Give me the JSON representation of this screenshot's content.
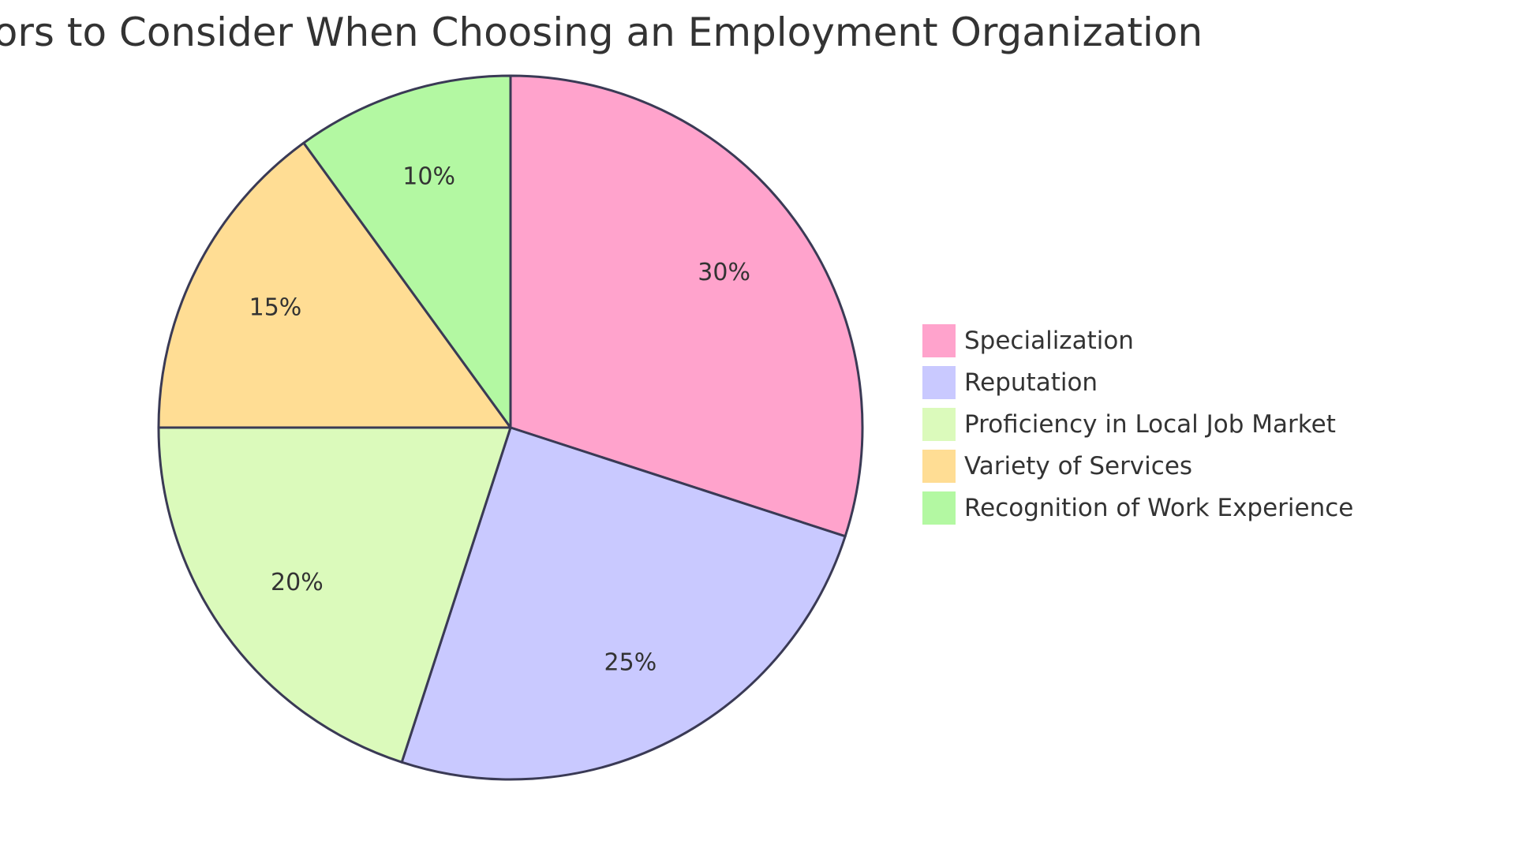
{
  "chart_data": {
    "type": "pie",
    "title": "Factors to Consider When Choosing an Employment Organization",
    "categories": [
      "Specialization",
      "Reputation",
      "Proficiency in Local Job Market",
      "Variety of Services",
      "Recognition of Work Experience"
    ],
    "values": [
      30,
      25,
      20,
      15,
      10
    ],
    "slice_labels": [
      "30%",
      "25%",
      "20%",
      "15%",
      "10%"
    ],
    "colors": [
      "#ffa3cc",
      "#c9c9ff",
      "#dbfabb",
      "#ffdd94",
      "#b3f8a2"
    ],
    "stroke_color": "#3a3a55",
    "legend_position": "right"
  }
}
